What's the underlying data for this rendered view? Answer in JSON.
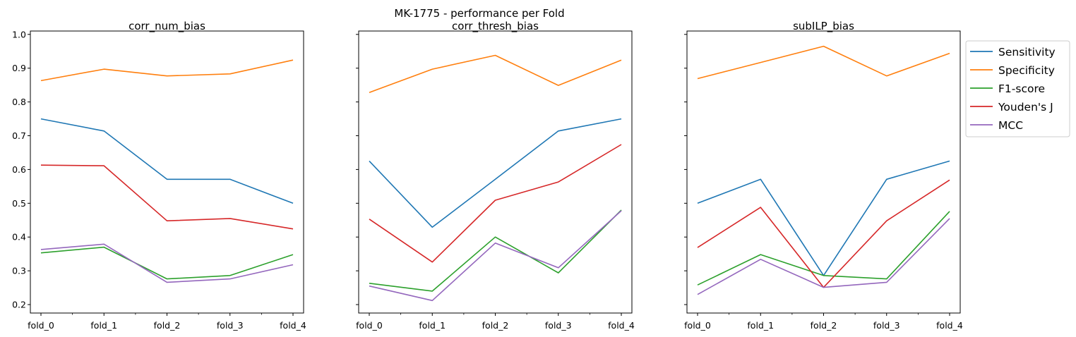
{
  "figure": {
    "suptitle": "MK-1775 - performance per Fold"
  },
  "colors": {
    "Sensitivity": "#1f77b4",
    "Specificity": "#ff7f0e",
    "F1-score": "#2ca02c",
    "Youden's J": "#d62728",
    "MCC": "#9467bd"
  },
  "legend": {
    "placement": "outside-right-top",
    "entries": [
      "Sensitivity",
      "Specificity",
      "F1-score",
      "Youden's J",
      "MCC"
    ]
  },
  "chart_data": [
    {
      "type": "line",
      "title": "corr_num_bias",
      "categories": [
        "fold_0",
        "fold_1",
        "fold_2",
        "fold_3",
        "fold_4"
      ],
      "ylim": [
        0.175,
        1.01
      ],
      "yticks": [
        0.2,
        0.3,
        0.4,
        0.5,
        0.6,
        0.7,
        0.8,
        0.9,
        1.0
      ],
      "ytick_labels": [
        "0.2",
        "0.3",
        "0.4",
        "0.5",
        "0.6",
        "0.7",
        "0.8",
        "0.9",
        "1.0"
      ],
      "grid": false,
      "series": [
        {
          "name": "Sensitivity",
          "values": [
            0.75,
            0.714,
            0.571,
            0.571,
            0.5
          ]
        },
        {
          "name": "Specificity",
          "values": [
            0.863,
            0.897,
            0.877,
            0.883,
            0.924
          ]
        },
        {
          "name": "F1-score",
          "values": [
            0.353,
            0.37,
            0.276,
            0.286,
            0.348
          ]
        },
        {
          "name": "Youden's J",
          "values": [
            0.613,
            0.611,
            0.448,
            0.455,
            0.424
          ]
        },
        {
          "name": "MCC",
          "values": [
            0.363,
            0.379,
            0.266,
            0.276,
            0.318
          ]
        }
      ]
    },
    {
      "type": "line",
      "title": "corr_thresh_bias",
      "categories": [
        "fold_0",
        "fold_1",
        "fold_2",
        "fold_3",
        "fold_4"
      ],
      "ylim": [
        0.175,
        1.01
      ],
      "grid": false,
      "series": [
        {
          "name": "Sensitivity",
          "values": [
            0.625,
            0.429,
            0.571,
            0.714,
            0.75
          ]
        },
        {
          "name": "Specificity",
          "values": [
            0.828,
            0.897,
            0.938,
            0.849,
            0.924
          ]
        },
        {
          "name": "F1-score",
          "values": [
            0.263,
            0.24,
            0.4,
            0.294,
            0.48
          ]
        },
        {
          "name": "Youden's J",
          "values": [
            0.453,
            0.326,
            0.509,
            0.563,
            0.674
          ]
        },
        {
          "name": "MCC",
          "values": [
            0.255,
            0.212,
            0.382,
            0.309,
            0.478
          ]
        }
      ]
    },
    {
      "type": "line",
      "title": "subILP_bias",
      "categories": [
        "fold_0",
        "fold_1",
        "fold_2",
        "fold_3",
        "fold_4"
      ],
      "ylim": [
        0.175,
        1.01
      ],
      "grid": false,
      "series": [
        {
          "name": "Sensitivity",
          "values": [
            0.5,
            0.571,
            0.286,
            0.571,
            0.625
          ]
        },
        {
          "name": "Specificity",
          "values": [
            0.869,
            0.917,
            0.965,
            0.877,
            0.944
          ]
        },
        {
          "name": "F1-score",
          "values": [
            0.258,
            0.348,
            0.286,
            0.276,
            0.476
          ]
        },
        {
          "name": "Youden's J",
          "values": [
            0.369,
            0.488,
            0.251,
            0.448,
            0.569
          ]
        },
        {
          "name": "MCC",
          "values": [
            0.23,
            0.334,
            0.251,
            0.266,
            0.455
          ]
        }
      ]
    }
  ]
}
